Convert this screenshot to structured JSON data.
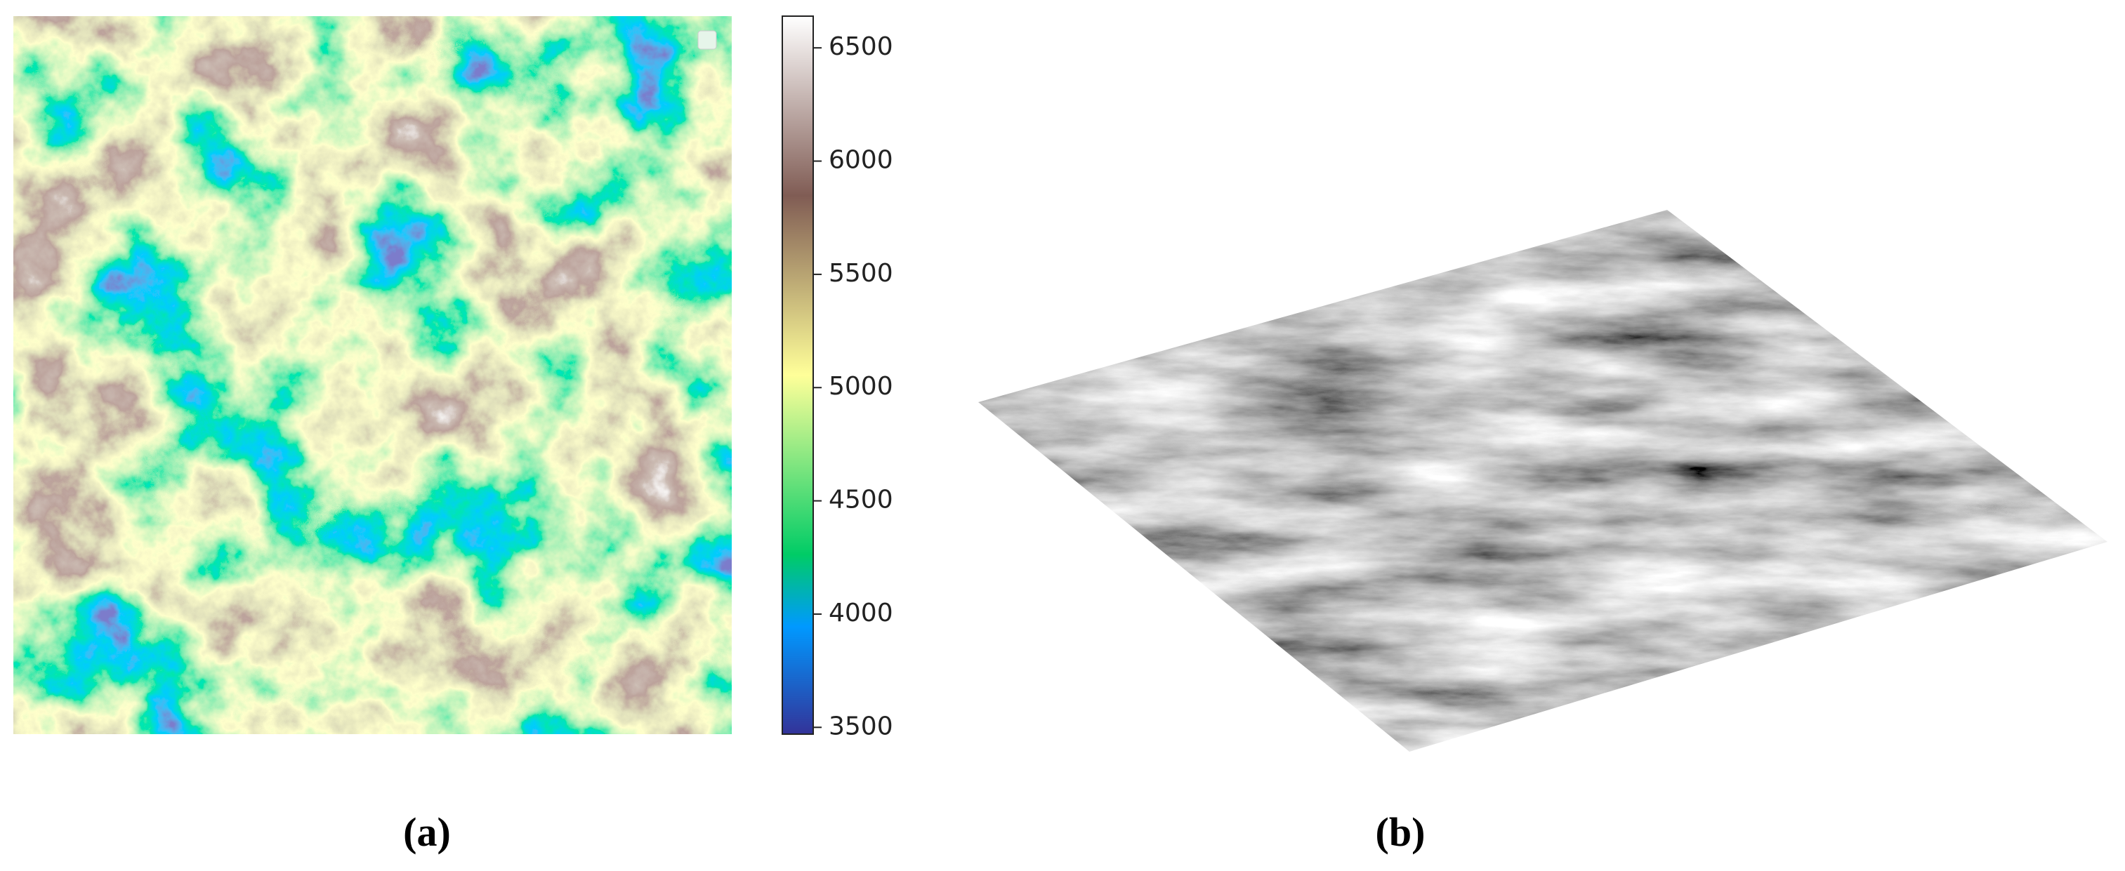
{
  "panels": [
    {
      "label": "(a)"
    },
    {
      "label": "(b)"
    }
  ],
  "colorbar": {
    "clim": [
      3470,
      6640
    ],
    "ticks": [
      3500,
      4000,
      4500,
      5000,
      5500,
      6000,
      6500
    ]
  }
}
